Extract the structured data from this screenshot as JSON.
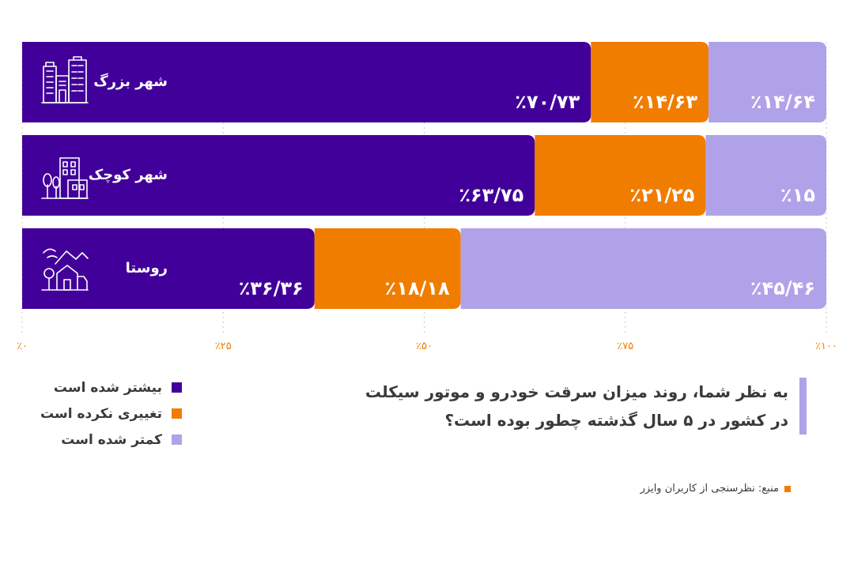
{
  "chart_data": {
    "type": "bar",
    "stacked": true,
    "orientation": "horizontal",
    "categories": [
      "شهر بزرگ",
      "شهر کوچک",
      "روستا"
    ],
    "series": [
      {
        "name": "بیشتر شده است",
        "color": "#42009a",
        "values": [
          70.73,
          63.75,
          36.36
        ],
        "labels": [
          "٪۷۰/۷۳",
          "٪۶۳/۷۵",
          "٪۳۶/۳۶"
        ]
      },
      {
        "name": "تغییری نکرده است",
        "color": "#f07d00",
        "values": [
          14.63,
          21.25,
          18.18
        ],
        "labels": [
          "٪۱۴/۶۳",
          "٪۲۱/۲۵",
          "٪۱۸/۱۸"
        ]
      },
      {
        "name": "کمتر شده است",
        "color": "#b0a2e8",
        "values": [
          14.64,
          15,
          45.46
        ],
        "labels": [
          "٪۱۴/۶۴",
          "٪۱۵",
          "٪۴۵/۴۶"
        ]
      }
    ],
    "xlim": [
      0,
      100
    ],
    "ticks": [
      0,
      25,
      50,
      75,
      100
    ],
    "tick_labels": [
      "٪۰",
      "٪۲۵",
      "٪۵۰",
      "٪۷۵",
      "٪۱۰۰"
    ],
    "grid": true,
    "legend_position": "bottom-left",
    "category_icons": [
      "skyscrapers-icon",
      "town-buildings-icon",
      "village-house-icon"
    ]
  },
  "question": {
    "line1": "به نظر شما، روند میزان سرقت خودرو و موتور سیکلت",
    "line2": "در کشور در ۵ سال گذشته چطور بوده است؟"
  },
  "source": "منبع: نظرسنجی از کاربران وایزر"
}
